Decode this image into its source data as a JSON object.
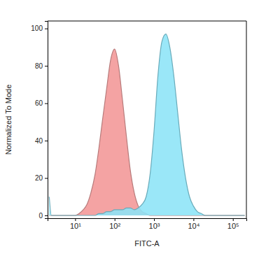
{
  "chart_data": {
    "type": "area",
    "x_label": "FITC-A",
    "y_label": "Normalized To Mode",
    "log": "x",
    "grid": false,
    "xlim": [
      2,
      220000
    ],
    "ylim": [
      -1.5,
      104
    ],
    "xticks": [
      {
        "value": 10,
        "label": "10¹"
      },
      {
        "value": 100,
        "label": "10²"
      },
      {
        "value": 1000,
        "label": "10³"
      },
      {
        "value": 10000,
        "label": "10⁴"
      },
      {
        "value": 100000,
        "label": "10⁵"
      }
    ],
    "yticks": [
      0,
      20,
      40,
      60,
      80,
      100
    ],
    "x": [
      2.2,
      2.5,
      3.2,
      4,
      5,
      6.3,
      7.9,
      10,
      12.6,
      16,
      20,
      25,
      32,
      40,
      50,
      63,
      79,
      100,
      126,
      158,
      200,
      251,
      316,
      398,
      501,
      631,
      794,
      1000,
      1259,
      1585,
      1995,
      2512,
      3162,
      3981,
      5012,
      6310,
      7943,
      10000,
      12589,
      15849,
      19953,
      25119,
      31623,
      39811,
      50119,
      63096,
      79433,
      100000,
      125893,
      158489,
      199526
    ],
    "series": [
      {
        "color": "#f4a3a3",
        "values": [
          0,
          0,
          0,
          0,
          0,
          0,
          0,
          0,
          1,
          3,
          6,
          12,
          22,
          36,
          52,
          68,
          83,
          89,
          80,
          62,
          42,
          24,
          12,
          5,
          2,
          1,
          0,
          0,
          0,
          0,
          0,
          0,
          0,
          0,
          0,
          0,
          0,
          0,
          0,
          0,
          0,
          0,
          0,
          0,
          0,
          0,
          0,
          0,
          0,
          0,
          0
        ]
      },
      {
        "color": "#8ce4f7",
        "values": [
          10,
          0,
          0,
          0,
          0,
          0,
          0,
          0,
          0,
          0,
          0,
          0,
          0,
          1,
          1,
          2,
          2,
          3,
          3,
          3,
          4,
          4,
          3,
          4,
          6,
          10,
          22,
          45,
          75,
          93,
          97,
          90,
          75,
          55,
          35,
          20,
          10,
          5,
          2,
          1,
          0,
          0,
          0,
          0,
          0,
          0,
          0,
          0,
          0,
          0,
          0
        ]
      }
    ]
  }
}
